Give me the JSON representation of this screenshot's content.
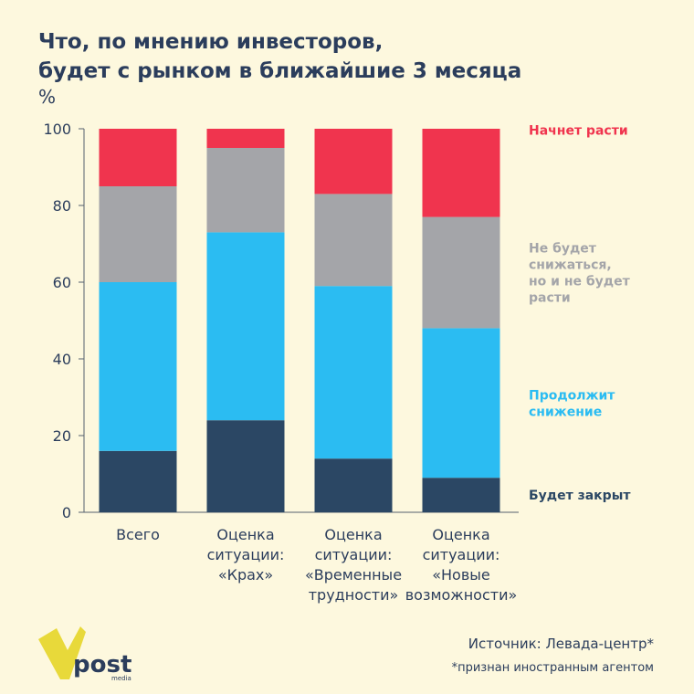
{
  "title_line1": "Что, по мнению инвесторов,",
  "title_line2": "будет с рынком в ближайшие 3 месяца",
  "unit": "%",
  "source": "Источник: Левада-центр*",
  "footnote": "*признан иностранным агентом",
  "logo": {
    "text": "post",
    "subtext": "media",
    "accent": "#e8d93a"
  },
  "chart_data": {
    "type": "bar",
    "stacked": true,
    "categories": [
      [
        "Всего"
      ],
      [
        "Оценка",
        "ситуации:",
        "«Крах»"
      ],
      [
        "Оценка",
        "ситуации:",
        "«Временные",
        "трудности»"
      ],
      [
        "Оценка",
        "ситуации:",
        "«Новые",
        "возможности»"
      ]
    ],
    "series": [
      {
        "name": "Будет закрыт",
        "label": [
          "Будет закрыт"
        ],
        "color": "#2b4764",
        "values": [
          16,
          24,
          14,
          9
        ]
      },
      {
        "name": "Продолжит снижение",
        "label": [
          "Продолжит",
          "снижение"
        ],
        "color": "#2bbcf2",
        "values": [
          44,
          49,
          45,
          39
        ]
      },
      {
        "name": "Не будет снижаться, но и не будет расти",
        "label": [
          "Не будет",
          "снижаться,",
          "но и не будет",
          "расти"
        ],
        "color": "#a4a5a9",
        "values": [
          25,
          22,
          24,
          29
        ]
      },
      {
        "name": "Начнет расти",
        "label": [
          "Начнет расти"
        ],
        "color": "#f0344e",
        "values": [
          15,
          5,
          17,
          23
        ]
      }
    ],
    "ylim": [
      0,
      100
    ],
    "yticks": [
      0,
      20,
      40,
      60,
      80,
      100
    ],
    "grid": false,
    "legend_placement": "right"
  }
}
